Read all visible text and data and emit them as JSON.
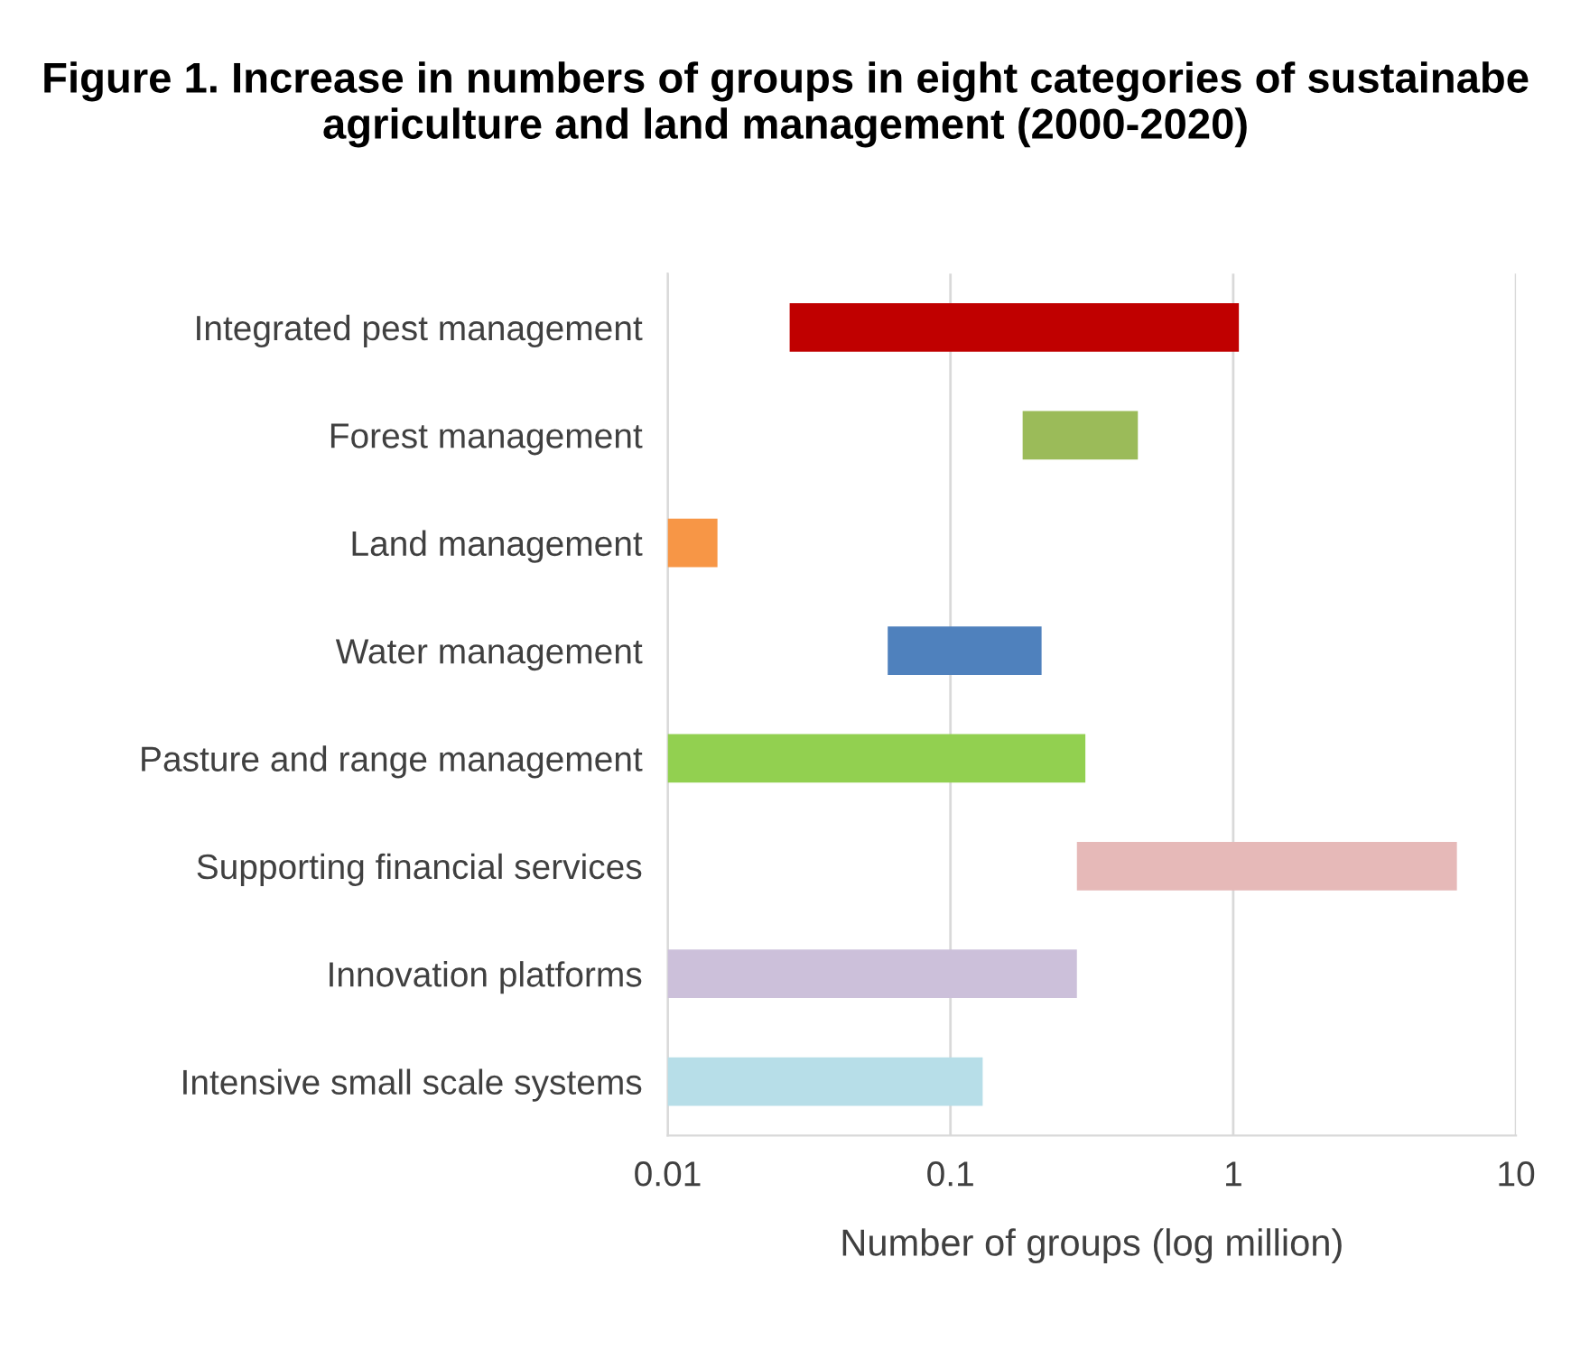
{
  "chart_data": {
    "type": "bar",
    "orientation": "horizontal",
    "title": "Figure 1. Increase in numbers of groups in eight categories of sustainabe agriculture and land management (2000-2020)",
    "xlabel": "Number of groups (log million)",
    "categories": [
      "Integrated pest management",
      "Forest management",
      "Land management",
      "Water management",
      "Pasture and range management",
      "Supporting financial services",
      "Innovation platforms",
      "Intensive small scale systems"
    ],
    "base": [
      0.027,
      0.18,
      0.01,
      0.06,
      0.01,
      0.28,
      0.01,
      0.01
    ],
    "values": [
      1.02,
      0.28,
      0.005,
      0.15,
      0.29,
      5.9,
      0.27,
      0.12
    ],
    "colors": [
      "#c00000",
      "#9bbb59",
      "#f79646",
      "#4f81bd",
      "#92d050",
      "#e6b9b8",
      "#ccc0da",
      "#b7dee8"
    ],
    "log": "x",
    "xlim": [
      0.01,
      10
    ],
    "xticks": [
      0.01,
      0.1,
      1,
      10
    ],
    "grid": "x",
    "legend": false
  }
}
